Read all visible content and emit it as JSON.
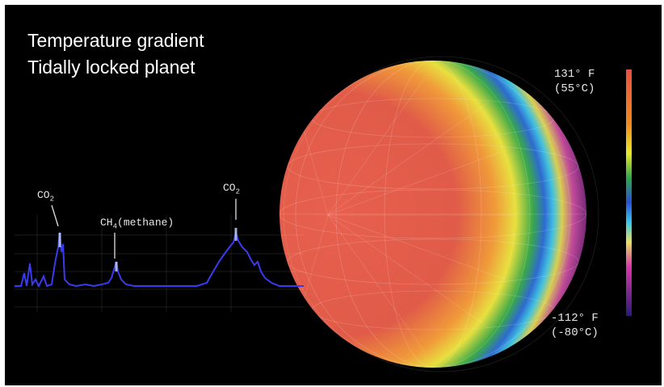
{
  "title": {
    "line1": "Temperature gradient",
    "line2": "Tidally locked planet"
  },
  "legend": {
    "max_f": "131° F",
    "max_c": "(55°C)",
    "min_f": "-112° F",
    "min_c": "(-80°C)",
    "colors": [
      "#e8553e",
      "#f0a020",
      "#e8e82a",
      "#2ea84a",
      "#2a4fd8",
      "#38c8e8",
      "#e8e060",
      "#d838a8",
      "#3a1a8a"
    ]
  },
  "spectrum": {
    "labels": {
      "co2_left": "CO",
      "co2_left_sub": "2",
      "ch4": "CH",
      "ch4_sub": "4",
      "ch4_suffix": "(methane)",
      "co2_right": "CO",
      "co2_right_sub": "2"
    },
    "line_color": "#3a3af0"
  },
  "planet": {
    "hot_color": "#e25a4a",
    "cold_color": "#2a1040"
  }
}
